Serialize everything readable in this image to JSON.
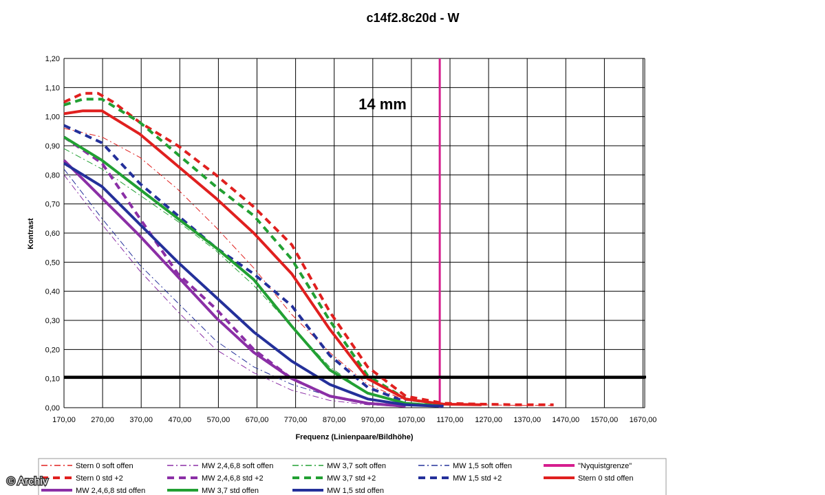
{
  "chart_data": {
    "type": "line",
    "title": "c14f2.8c20d - W",
    "annotation": "14 mm",
    "xlabel": "Frequenz (Linienpaare/Bildhöhe)",
    "ylabel": "Kontrast",
    "xlim": [
      170,
      1700
    ],
    "ylim": [
      0,
      1.2
    ],
    "x_ticks": [
      "170,00",
      "270,00",
      "370,00",
      "470,00",
      "570,00",
      "670,00",
      "770,00",
      "870,00",
      "970,00",
      "1070,00",
      "1170,00",
      "1270,00",
      "1370,00",
      "1470,00",
      "1570,00",
      "1670,00"
    ],
    "y_ticks": [
      "0,00",
      "0,10",
      "0,20",
      "0,30",
      "0,40",
      "0,50",
      "0,60",
      "0,70",
      "0,80",
      "0,90",
      "1,00",
      "1,10",
      "1,20"
    ],
    "grid": true,
    "legend_position": "bottom",
    "threshold_line": 0.105,
    "nyquist_x": 1160,
    "series": [
      {
        "name": "Stern 0 soft offen",
        "color": "#e0201f",
        "style": "dashdot",
        "width": 1,
        "x": [
          170,
          270,
          370,
          470,
          570,
          670,
          770,
          870,
          970,
          1070,
          1170,
          1270,
          1370,
          1460
        ],
        "y": [
          0.96,
          0.93,
          0.86,
          0.75,
          0.62,
          0.48,
          0.32,
          0.19,
          0.08,
          0.025,
          0.012,
          0.01,
          0.008,
          0.008
        ]
      },
      {
        "name": "MW 2,4,6,8 soft offen",
        "color": "#8b2fa6",
        "style": "dashdot",
        "width": 1,
        "x": [
          170,
          270,
          370,
          470,
          570,
          670,
          770,
          870,
          970,
          1070
        ],
        "y": [
          0.8,
          0.63,
          0.47,
          0.33,
          0.2,
          0.12,
          0.06,
          0.025,
          0.01,
          0.005
        ]
      },
      {
        "name": "MW 3,7 soft offen",
        "color": "#22a033",
        "style": "dashdot",
        "width": 1,
        "x": [
          170,
          270,
          370,
          470,
          570,
          670,
          770,
          870,
          970,
          1070
        ],
        "y": [
          0.89,
          0.82,
          0.73,
          0.64,
          0.54,
          0.42,
          0.28,
          0.14,
          0.05,
          0.015
        ]
      },
      {
        "name": "MW 1,5 soft offen",
        "color": "#24309a",
        "style": "dashdot",
        "width": 1,
        "x": [
          170,
          270,
          370,
          470,
          570,
          670,
          770,
          870,
          970,
          1070
        ],
        "y": [
          0.82,
          0.65,
          0.49,
          0.36,
          0.23,
          0.14,
          0.08,
          0.04,
          0.015,
          0.005
        ]
      },
      {
        "name": "\"Nyquistgrenze\"",
        "color": "#d61e8e",
        "style": "solid",
        "width": 3,
        "x": [
          1160,
          1160
        ],
        "y": [
          0,
          1.2
        ]
      },
      {
        "name": "Stern 0 std +2",
        "color": "#e0201f",
        "style": "dash",
        "width": 4,
        "x": [
          170,
          220,
          260,
          300,
          370,
          470,
          570,
          670,
          770,
          870,
          970,
          1070,
          1170,
          1270,
          1370,
          1460
        ],
        "y": [
          1.05,
          1.08,
          1.08,
          1.05,
          0.98,
          0.9,
          0.8,
          0.69,
          0.56,
          0.33,
          0.14,
          0.04,
          0.015,
          0.012,
          0.01,
          0.01
        ]
      },
      {
        "name": "MW 2,4,6,8 std +2",
        "color": "#8b2fa6",
        "style": "dash",
        "width": 4,
        "x": [
          170,
          270,
          370,
          470,
          570,
          670,
          770,
          870,
          970,
          1070
        ],
        "y": [
          0.93,
          0.84,
          0.65,
          0.46,
          0.34,
          0.2,
          0.1,
          0.04,
          0.015,
          0.005
        ]
      },
      {
        "name": "MW 3,7 std +2",
        "color": "#22a033",
        "style": "dash",
        "width": 4,
        "x": [
          170,
          220,
          270,
          370,
          470,
          570,
          670,
          770,
          870,
          970,
          1070,
          1170
        ],
        "y": [
          1.04,
          1.06,
          1.06,
          0.98,
          0.87,
          0.76,
          0.66,
          0.51,
          0.3,
          0.11,
          0.03,
          0.01
        ]
      },
      {
        "name": "MW 1,5 std +2",
        "color": "#24309a",
        "style": "dash",
        "width": 4,
        "x": [
          170,
          270,
          370,
          470,
          570,
          670,
          770,
          870,
          970,
          1070
        ],
        "y": [
          0.97,
          0.91,
          0.77,
          0.66,
          0.55,
          0.46,
          0.35,
          0.18,
          0.07,
          0.02
        ]
      },
      {
        "name": "Stern 0 std offen",
        "color": "#e0201f",
        "style": "solid",
        "width": 4,
        "x": [
          170,
          220,
          270,
          370,
          470,
          570,
          670,
          770,
          870,
          970,
          1070,
          1170,
          1270
        ],
        "y": [
          1.01,
          1.02,
          1.02,
          0.94,
          0.83,
          0.72,
          0.6,
          0.46,
          0.27,
          0.1,
          0.03,
          0.012,
          0.01
        ]
      },
      {
        "name": "MW 2,4,6,8 std offen",
        "color": "#8b2fa6",
        "style": "solid",
        "width": 4,
        "x": [
          170,
          270,
          370,
          470,
          570,
          670,
          770,
          870,
          970,
          1070
        ],
        "y": [
          0.85,
          0.72,
          0.59,
          0.45,
          0.31,
          0.19,
          0.1,
          0.04,
          0.015,
          0.005
        ]
      },
      {
        "name": "MW 3,7 std offen",
        "color": "#22a033",
        "style": "solid",
        "width": 4,
        "x": [
          170,
          270,
          370,
          470,
          570,
          670,
          770,
          870,
          970,
          1070,
          1170
        ],
        "y": [
          0.93,
          0.85,
          0.75,
          0.65,
          0.55,
          0.44,
          0.28,
          0.13,
          0.05,
          0.015,
          0.005
        ]
      },
      {
        "name": "MW 1,5 std offen",
        "color": "#24309a",
        "style": "solid",
        "width": 4,
        "x": [
          170,
          270,
          370,
          470,
          570,
          670,
          770,
          870,
          970,
          1070,
          1170
        ],
        "y": [
          0.84,
          0.76,
          0.63,
          0.5,
          0.38,
          0.26,
          0.16,
          0.08,
          0.03,
          0.01,
          0.005
        ]
      }
    ]
  },
  "watermark": "© Archiv"
}
